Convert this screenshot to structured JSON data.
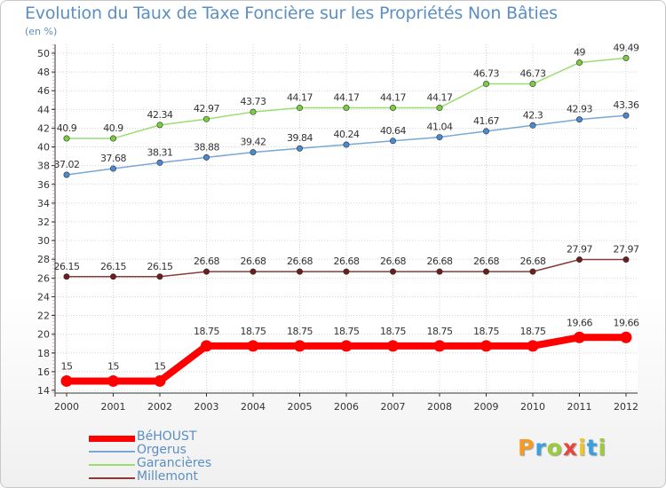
{
  "header": {
    "title": "Evolution du Taux de Taxe Foncière sur les Propriétés Non Bâties",
    "unit": "(en %)"
  },
  "chart_data": {
    "type": "line",
    "title": "Evolution du Taux de Taxe Foncière sur les Propriétés Non Bâties",
    "ylabel": "(en %)",
    "xlabel": "",
    "categories": [
      "2000",
      "2001",
      "2002",
      "2003",
      "2004",
      "2005",
      "2006",
      "2007",
      "2008",
      "2009",
      "2010",
      "2011",
      "2012"
    ],
    "yticks": [
      14,
      16,
      18,
      20,
      22,
      24,
      26,
      28,
      30,
      32,
      34,
      36,
      38,
      40,
      42,
      44,
      46,
      48,
      50
    ],
    "ylim": [
      14,
      50
    ],
    "grid": true,
    "legend_position": "bottom-left",
    "series": [
      {
        "name": "BéHOUST",
        "color": "#ff0000",
        "marker": "#ff0000",
        "values": [
          15,
          15,
          15,
          18.75,
          18.75,
          18.75,
          18.75,
          18.75,
          18.75,
          18.75,
          18.75,
          19.66,
          19.66
        ]
      },
      {
        "name": "Orgerus",
        "color": "#78a8d8",
        "marker": "#4a8ad0",
        "values": [
          37.02,
          37.68,
          38.31,
          38.88,
          39.42,
          39.84,
          40.24,
          40.64,
          41.04,
          41.67,
          42.3,
          42.93,
          43.36
        ]
      },
      {
        "name": "Garancières",
        "color": "#9ade70",
        "marker": "#7acc40",
        "values": [
          40.9,
          40.9,
          42.34,
          42.97,
          43.73,
          44.17,
          44.17,
          44.17,
          44.17,
          46.73,
          46.73,
          49,
          49.49
        ]
      },
      {
        "name": "Millemont",
        "color": "#8b3a3a",
        "marker": "#6e1c1c",
        "values": [
          26.15,
          26.15,
          26.15,
          26.68,
          26.68,
          26.68,
          26.68,
          26.68,
          26.68,
          26.68,
          26.68,
          27.97,
          27.97
        ]
      }
    ]
  },
  "logo": {
    "text": "Proxiti"
  }
}
